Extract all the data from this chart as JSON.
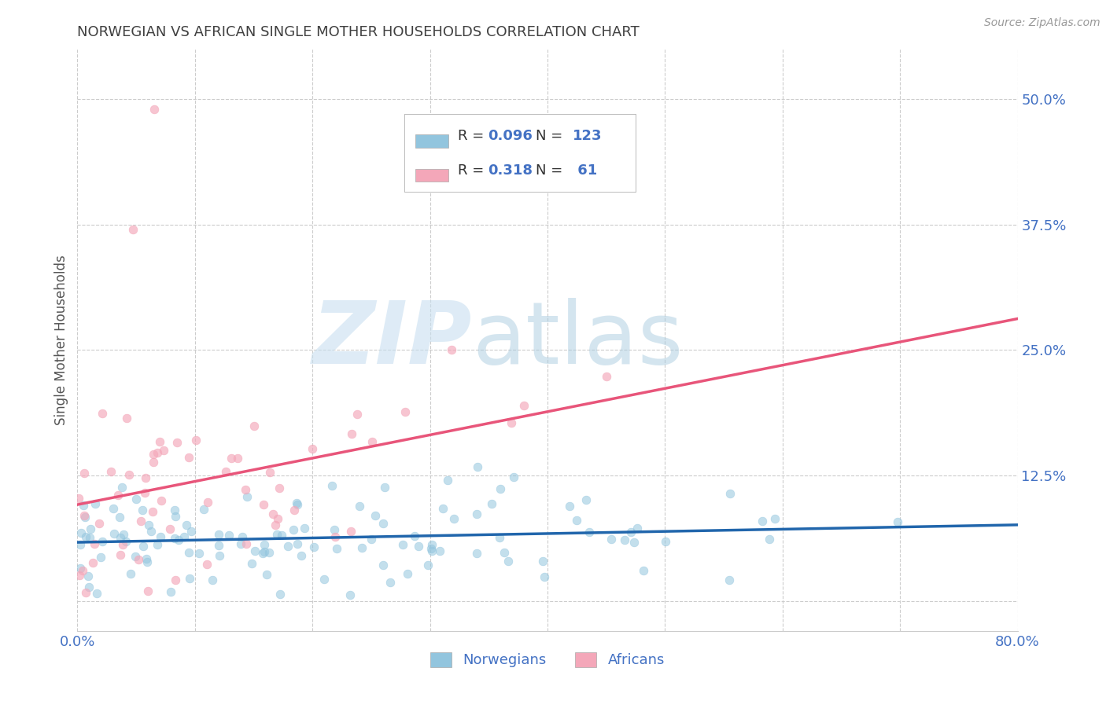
{
  "title": "NORWEGIAN VS AFRICAN SINGLE MOTHER HOUSEHOLDS CORRELATION CHART",
  "source": "Source: ZipAtlas.com",
  "ylabel": "Single Mother Households",
  "xlim": [
    0.0,
    0.8
  ],
  "ylim": [
    -0.03,
    0.55
  ],
  "xticks": [
    0.0,
    0.1,
    0.2,
    0.3,
    0.4,
    0.5,
    0.6,
    0.7,
    0.8
  ],
  "xticklabels": [
    "0.0%",
    "",
    "",
    "",
    "",
    "",
    "",
    "",
    "80.0%"
  ],
  "yticks": [
    0.0,
    0.125,
    0.25,
    0.375,
    0.5
  ],
  "yticklabels": [
    "",
    "12.5%",
    "25.0%",
    "37.5%",
    "50.0%"
  ],
  "blue_color": "#92c5de",
  "pink_color": "#f4a7b9",
  "blue_line_color": "#2166ac",
  "pink_line_color": "#e8557a",
  "background_color": "#ffffff",
  "grid_color": "#cccccc",
  "title_color": "#404040",
  "axis_label_color": "#555555",
  "tick_label_color": "#4472c4",
  "norwegian_seed": 42,
  "african_seed": 7,
  "norwegian_n": 123,
  "african_n": 61
}
